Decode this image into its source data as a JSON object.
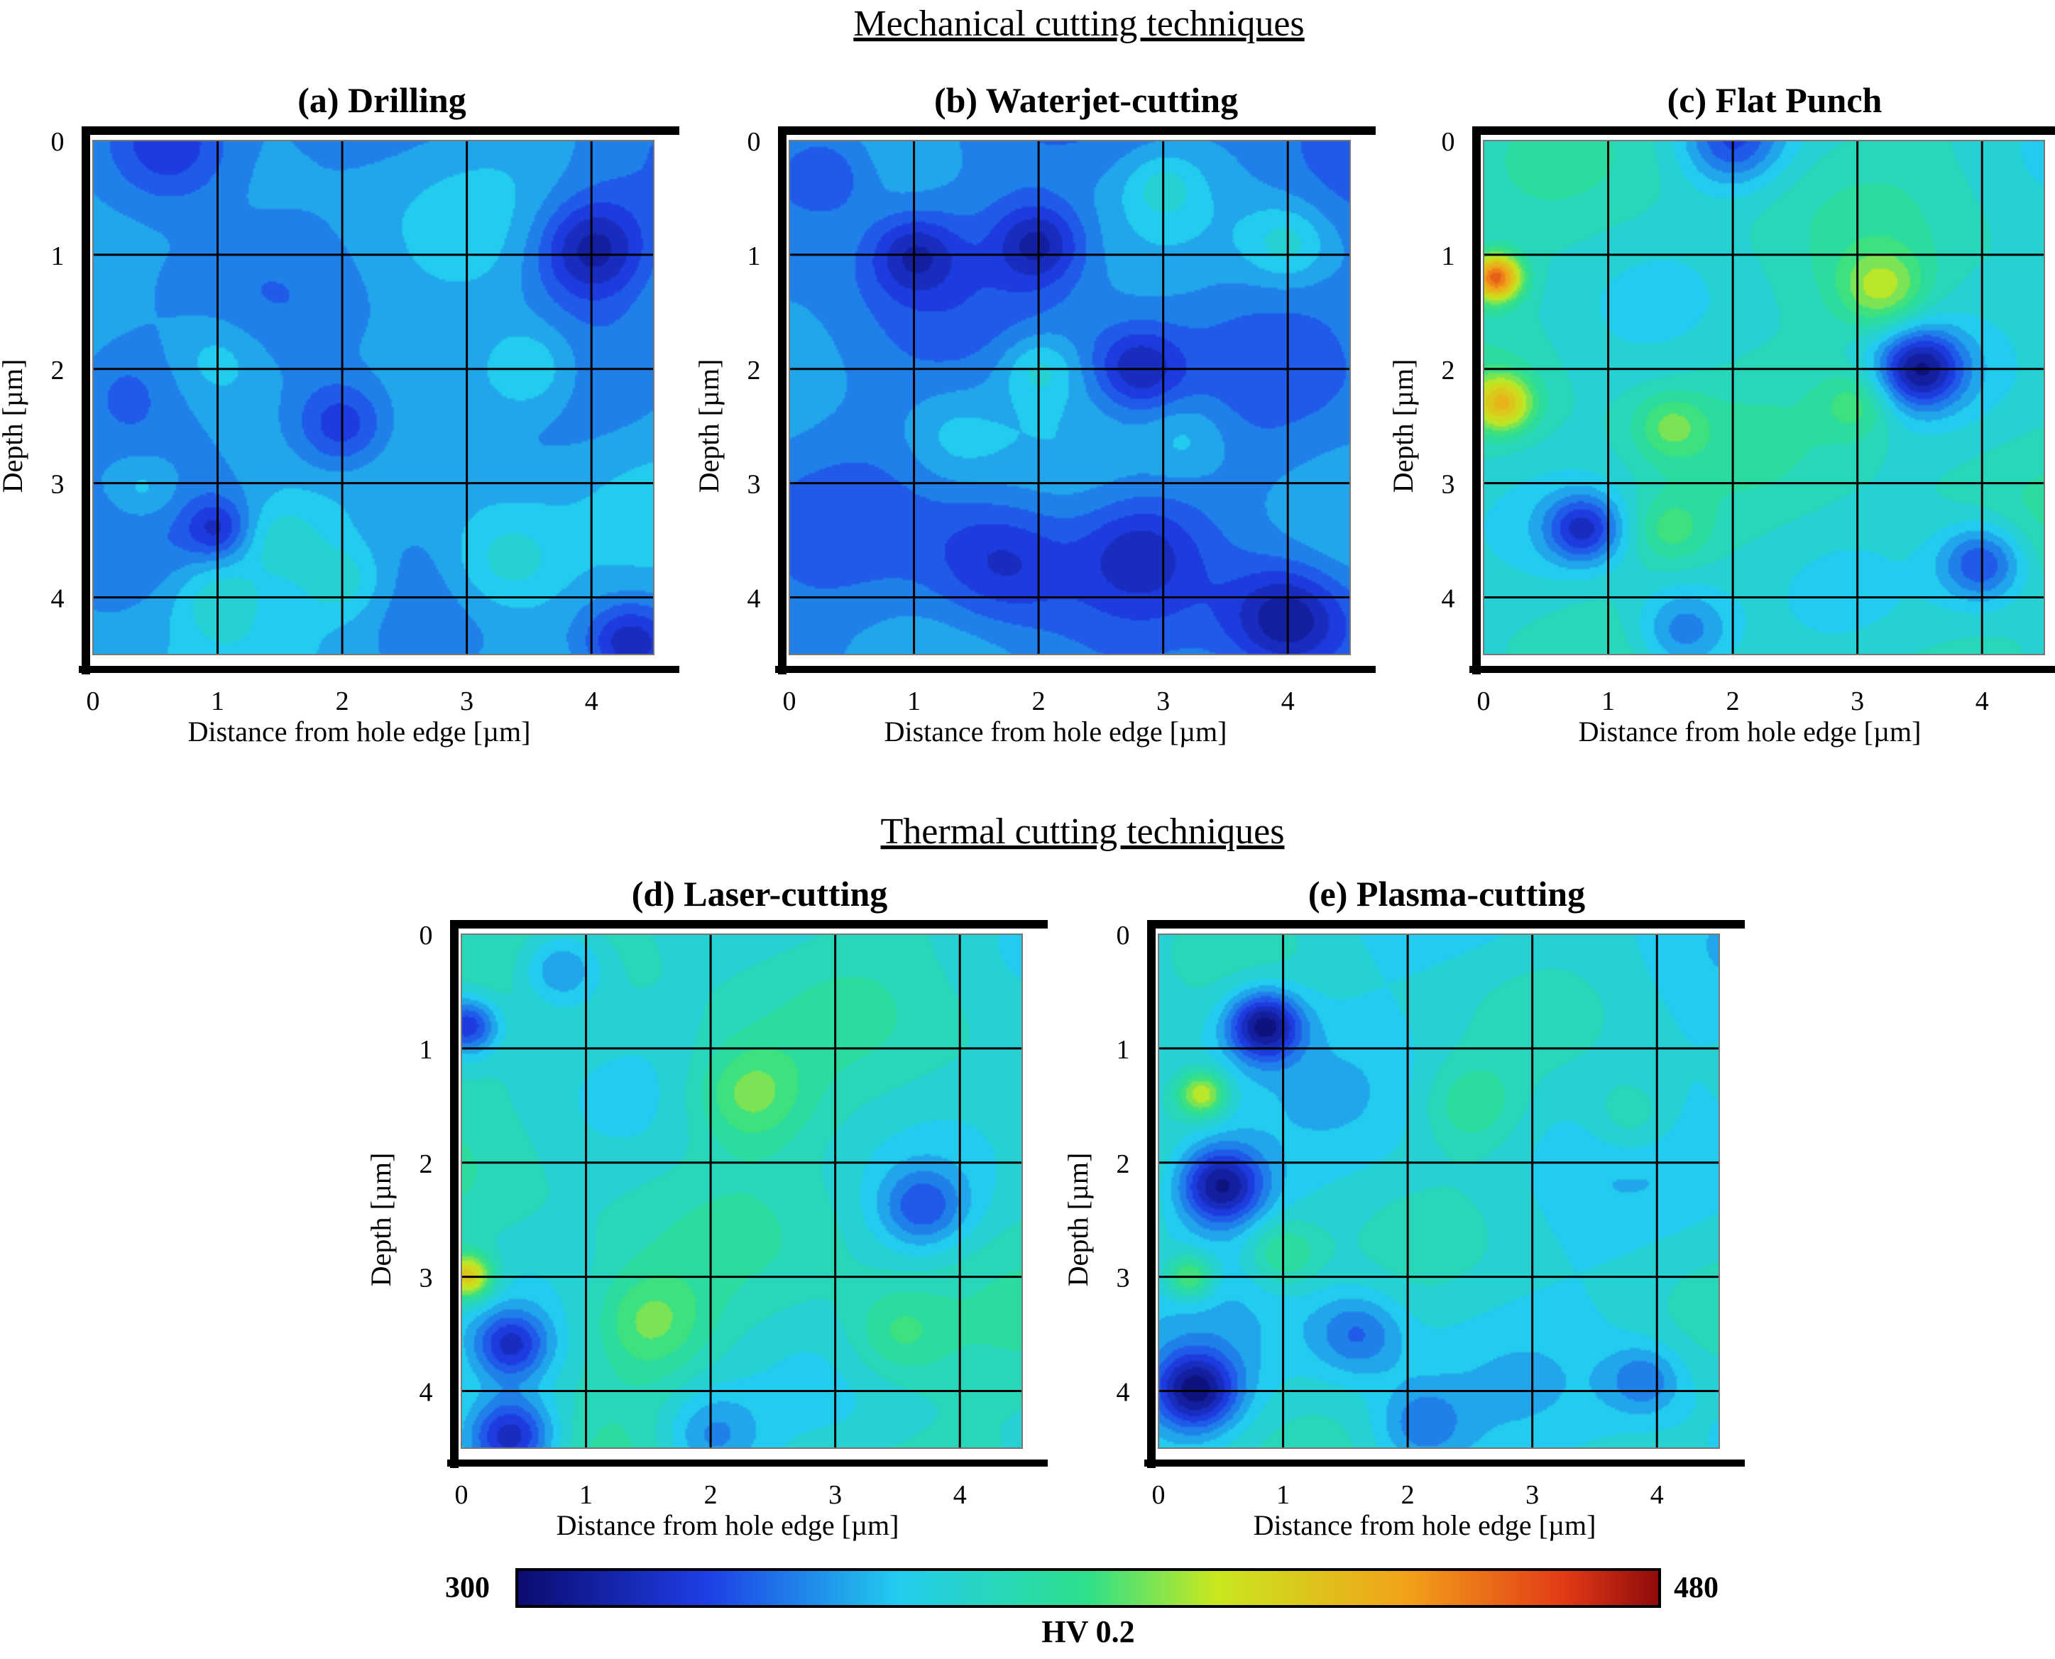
{
  "figure": {
    "mechanical_title": "Mechanical cutting techniques",
    "thermal_title": "Thermal cutting techniques"
  },
  "chart_data": [
    {
      "type": "heatmap",
      "panel": "a",
      "title": "(a) Drilling",
      "xlabel": "Distance from hole edge [µm]",
      "ylabel": "Depth [µm]",
      "xlim": [
        0,
        4.5
      ],
      "ylim": [
        0,
        4.5
      ],
      "xticks": [
        "0",
        "1",
        "2",
        "3",
        "4"
      ],
      "yticks": [
        "0",
        "1",
        "2",
        "3",
        "4"
      ],
      "base_hv": 350,
      "features": [
        {
          "x": 0.6,
          "y": 0.05,
          "hv": 315,
          "r": 0.55
        },
        {
          "x": 4.0,
          "y": 0.95,
          "hv": 312,
          "r": 0.45
        },
        {
          "x": 2.0,
          "y": 2.5,
          "hv": 318,
          "r": 0.4
        },
        {
          "x": 3.5,
          "y": 2.0,
          "hv": 372,
          "r": 0.4
        },
        {
          "x": 3.3,
          "y": 3.7,
          "hv": 374,
          "r": 0.5
        },
        {
          "x": 1.5,
          "y": 3.5,
          "hv": 368,
          "r": 0.35
        },
        {
          "x": 1.0,
          "y": 4.0,
          "hv": 368,
          "r": 0.35
        },
        {
          "x": 2.0,
          "y": 3.85,
          "hv": 370,
          "r": 0.35
        },
        {
          "x": 0.4,
          "y": 3.05,
          "hv": 366,
          "r": 0.3
        },
        {
          "x": 1.0,
          "y": 1.9,
          "hv": 364,
          "r": 0.4
        },
        {
          "x": 1.0,
          "y": 3.4,
          "hv": 326,
          "r": 0.25
        },
        {
          "x": 4.3,
          "y": 4.4,
          "hv": 318,
          "r": 0.35
        },
        {
          "x": 0.2,
          "y": 2.2,
          "hv": 332,
          "r": 0.5
        }
      ]
    },
    {
      "type": "heatmap",
      "panel": "b",
      "title": "(b) Waterjet-cutting",
      "xlabel": "Distance from hole edge [µm]",
      "ylabel": "Depth [µm]",
      "xlim": [
        0,
        4.5
      ],
      "ylim": [
        0,
        4.5
      ],
      "xticks": [
        "0",
        "1",
        "2",
        "3",
        "4"
      ],
      "yticks": [
        "0",
        "1",
        "2",
        "3",
        "4"
      ],
      "base_hv": 345,
      "features": [
        {
          "x": 1.0,
          "y": 1.0,
          "hv": 318,
          "r": 0.35
        },
        {
          "x": 2.0,
          "y": 0.9,
          "hv": 315,
          "r": 0.35
        },
        {
          "x": 2.8,
          "y": 2.0,
          "hv": 316,
          "r": 0.35
        },
        {
          "x": 4.0,
          "y": 4.2,
          "hv": 308,
          "r": 0.45
        },
        {
          "x": 1.7,
          "y": 3.7,
          "hv": 322,
          "r": 0.55
        },
        {
          "x": 2.8,
          "y": 3.6,
          "hv": 326,
          "r": 0.45
        },
        {
          "x": 4.0,
          "y": 0.9,
          "hv": 366,
          "r": 0.35
        },
        {
          "x": 2.0,
          "y": 2.0,
          "hv": 364,
          "r": 0.3
        },
        {
          "x": 3.0,
          "y": 0.4,
          "hv": 360,
          "r": 0.3
        },
        {
          "x": 3.2,
          "y": 2.6,
          "hv": 358,
          "r": 0.35
        },
        {
          "x": 1.3,
          "y": 2.6,
          "hv": 356,
          "r": 0.4
        },
        {
          "x": 0.3,
          "y": 0.3,
          "hv": 325,
          "r": 0.4
        }
      ]
    },
    {
      "type": "heatmap",
      "panel": "c",
      "title": "(c) Flat Punch",
      "xlabel": "Distance from hole edge [µm]",
      "ylabel": "Depth [µm]",
      "xlim": [
        0,
        4.5
      ],
      "ylim": [
        0,
        4.5
      ],
      "xticks": [
        "0",
        "1",
        "2",
        "3",
        "4"
      ],
      "yticks": [
        "0",
        "1",
        "2",
        "3",
        "4"
      ],
      "base_hv": 372,
      "features": [
        {
          "x": 0.1,
          "y": 1.2,
          "hv": 455,
          "r": 0.2
        },
        {
          "x": 0.15,
          "y": 2.3,
          "hv": 425,
          "r": 0.25
        },
        {
          "x": 3.5,
          "y": 2.0,
          "hv": 315,
          "r": 0.35
        },
        {
          "x": 3.2,
          "y": 1.3,
          "hv": 405,
          "r": 0.35
        },
        {
          "x": 1.5,
          "y": 2.5,
          "hv": 395,
          "r": 0.3
        },
        {
          "x": 0.8,
          "y": 3.4,
          "hv": 328,
          "r": 0.3
        },
        {
          "x": 4.0,
          "y": 3.7,
          "hv": 330,
          "r": 0.35
        },
        {
          "x": 2.0,
          "y": 0.0,
          "hv": 335,
          "r": 0.4
        },
        {
          "x": 3.0,
          "y": 2.3,
          "hv": 394,
          "r": 0.3
        },
        {
          "x": 1.5,
          "y": 3.4,
          "hv": 392,
          "r": 0.3
        },
        {
          "x": 1.6,
          "y": 4.3,
          "hv": 338,
          "r": 0.4
        }
      ]
    },
    {
      "type": "heatmap",
      "panel": "d",
      "title": "(d) Laser-cutting",
      "xlabel": "Distance from hole edge [µm]",
      "ylabel": "Depth [µm]",
      "xlim": [
        0,
        4.5
      ],
      "ylim": [
        0,
        4.5
      ],
      "xticks": [
        "0",
        "1",
        "2",
        "3",
        "4"
      ],
      "yticks": [
        "0",
        "1",
        "2",
        "3",
        "4"
      ],
      "base_hv": 372,
      "features": [
        {
          "x": 0.05,
          "y": 3.0,
          "hv": 430,
          "r": 0.2
        },
        {
          "x": 2.3,
          "y": 1.4,
          "hv": 400,
          "r": 0.45
        },
        {
          "x": 1.5,
          "y": 3.4,
          "hv": 398,
          "r": 0.45
        },
        {
          "x": 0.4,
          "y": 4.4,
          "hv": 318,
          "r": 0.35
        },
        {
          "x": 0.05,
          "y": 0.8,
          "hv": 325,
          "r": 0.25
        },
        {
          "x": 3.7,
          "y": 2.4,
          "hv": 340,
          "r": 0.35
        },
        {
          "x": 0.4,
          "y": 3.6,
          "hv": 330,
          "r": 0.3
        },
        {
          "x": 0.8,
          "y": 0.3,
          "hv": 340,
          "r": 0.35
        },
        {
          "x": 3.5,
          "y": 3.5,
          "hv": 392,
          "r": 0.4
        },
        {
          "x": 2.0,
          "y": 4.4,
          "hv": 345,
          "r": 0.4
        }
      ]
    },
    {
      "type": "heatmap",
      "panel": "e",
      "title": "(e) Plasma-cutting",
      "xlabel": "Distance from hole edge [µm]",
      "ylabel": "Depth [µm]",
      "xlim": [
        0,
        4.5
      ],
      "ylim": [
        0,
        4.5
      ],
      "xticks": [
        "0",
        "1",
        "2",
        "3",
        "4"
      ],
      "yticks": [
        "0",
        "1",
        "2",
        "3",
        "4"
      ],
      "base_hv": 365,
      "features": [
        {
          "x": 0.85,
          "y": 0.8,
          "hv": 302,
          "r": 0.3
        },
        {
          "x": 0.5,
          "y": 2.2,
          "hv": 304,
          "r": 0.35
        },
        {
          "x": 0.3,
          "y": 4.0,
          "hv": 306,
          "r": 0.35
        },
        {
          "x": 0.35,
          "y": 1.4,
          "hv": 410,
          "r": 0.2
        },
        {
          "x": 0.25,
          "y": 3.0,
          "hv": 402,
          "r": 0.2
        },
        {
          "x": 1.0,
          "y": 2.8,
          "hv": 390,
          "r": 0.3
        },
        {
          "x": 2.5,
          "y": 1.5,
          "hv": 385,
          "r": 0.4
        },
        {
          "x": 3.8,
          "y": 1.6,
          "hv": 382,
          "r": 0.35
        },
        {
          "x": 1.6,
          "y": 3.5,
          "hv": 338,
          "r": 0.35
        },
        {
          "x": 3.9,
          "y": 3.9,
          "hv": 340,
          "r": 0.3
        },
        {
          "x": 2.1,
          "y": 4.3,
          "hv": 342,
          "r": 0.35
        }
      ]
    }
  ],
  "colorbar": {
    "min": "300",
    "max": "480",
    "label": "HV 0.2",
    "vmin": 300,
    "vmax": 480,
    "stops": [
      {
        "value": 300,
        "color": "#0b0b6e"
      },
      {
        "value": 330,
        "color": "#1e3ee6"
      },
      {
        "value": 360,
        "color": "#22ccee"
      },
      {
        "value": 390,
        "color": "#2ee08a"
      },
      {
        "value": 410,
        "color": "#c8e81e"
      },
      {
        "value": 440,
        "color": "#f2a21a"
      },
      {
        "value": 465,
        "color": "#e23a16"
      },
      {
        "value": 480,
        "color": "#8e0a0a"
      }
    ]
  }
}
